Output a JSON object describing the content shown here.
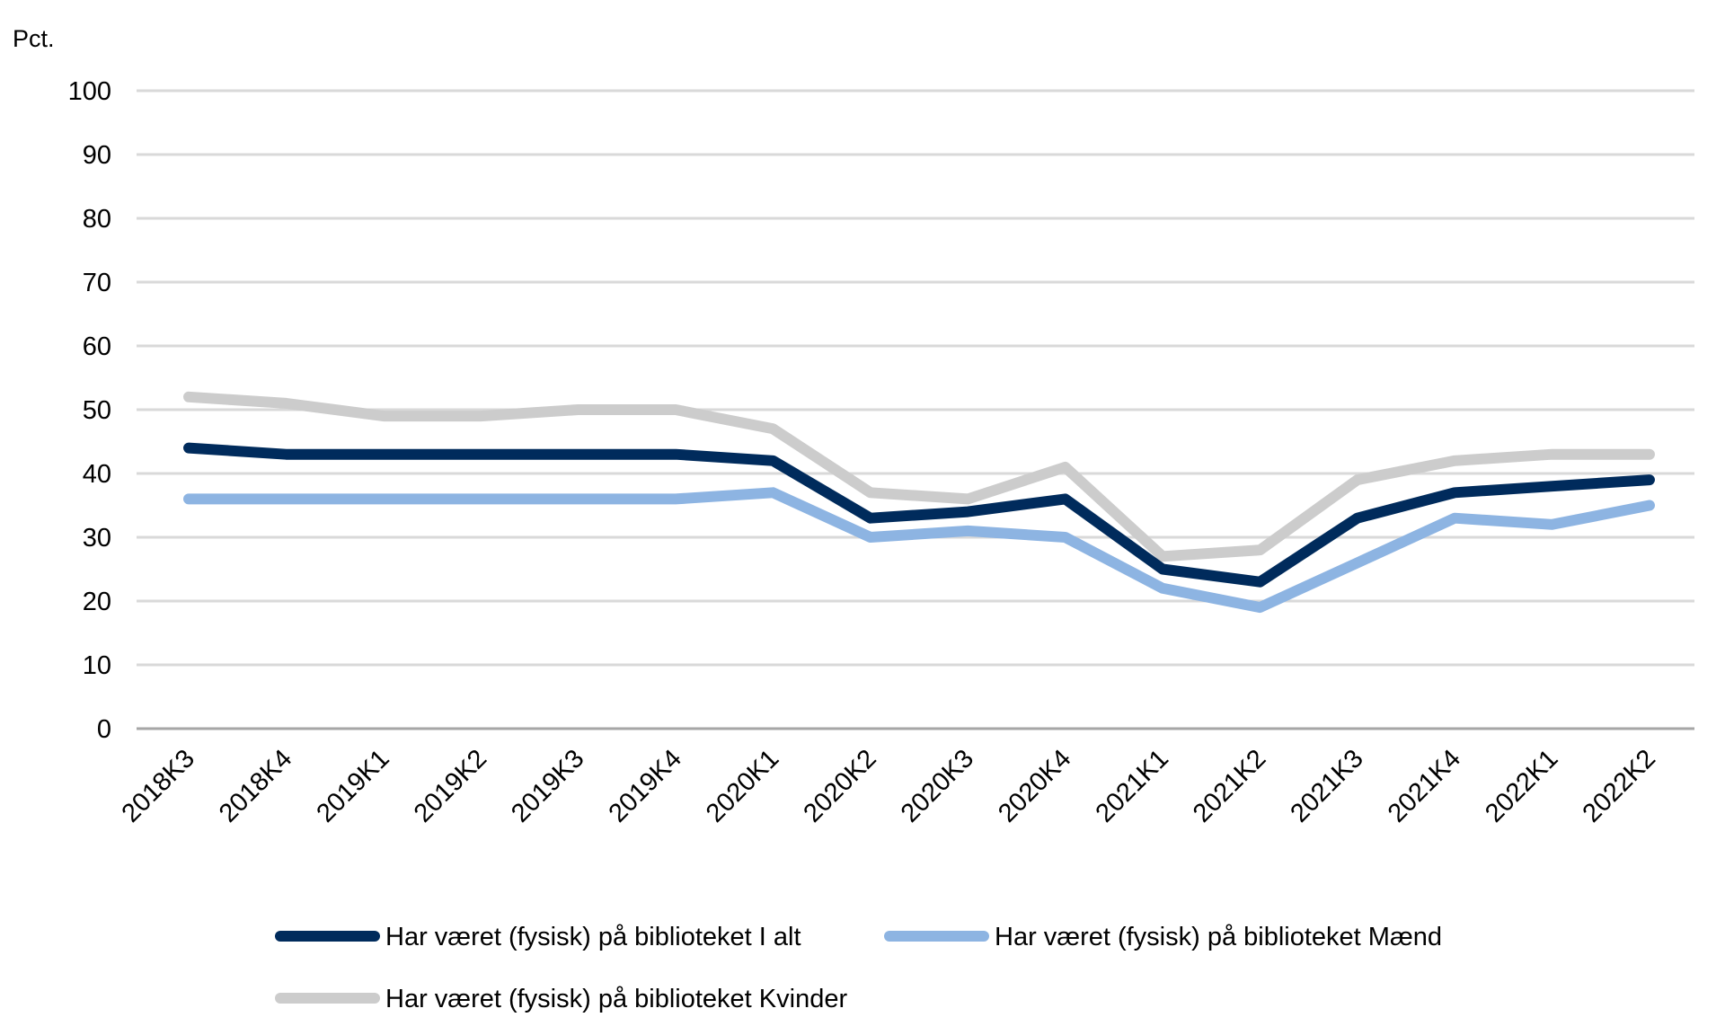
{
  "chart_data": {
    "type": "line",
    "ylabel": "Pct.",
    "ylim": [
      0,
      100
    ],
    "yticks": [
      "0",
      "10",
      "20",
      "30",
      "40",
      "50",
      "60",
      "70",
      "80",
      "90",
      "100"
    ],
    "grid": true,
    "legend_position": "bottom",
    "categories": [
      "2018K3",
      "2018K4",
      "2019K1",
      "2019K2",
      "2019K3",
      "2019K4",
      "2020K1",
      "2020K2",
      "2020K3",
      "2020K4",
      "2021K1",
      "2021K2",
      "2021K3",
      "2021K4",
      "2022K1",
      "2022K2"
    ],
    "series": [
      {
        "name": "Har været (fysisk) på biblioteket I alt",
        "color": "#002b5c",
        "values": [
          44,
          43,
          43,
          43,
          43,
          43,
          42,
          33,
          34,
          36,
          25,
          23,
          33,
          37,
          38,
          39
        ]
      },
      {
        "name": "Har været (fysisk) på biblioteket Mænd",
        "color": "#8db4e2",
        "values": [
          36,
          36,
          36,
          36,
          36,
          36,
          37,
          30,
          31,
          30,
          22,
          19,
          26,
          33,
          32,
          35
        ]
      },
      {
        "name": "Har været (fysisk) på biblioteket Kvinder",
        "color": "#cccccc",
        "values": [
          52,
          51,
          49,
          49,
          50,
          50,
          47,
          37,
          36,
          41,
          27,
          28,
          39,
          42,
          43,
          43
        ]
      }
    ]
  }
}
